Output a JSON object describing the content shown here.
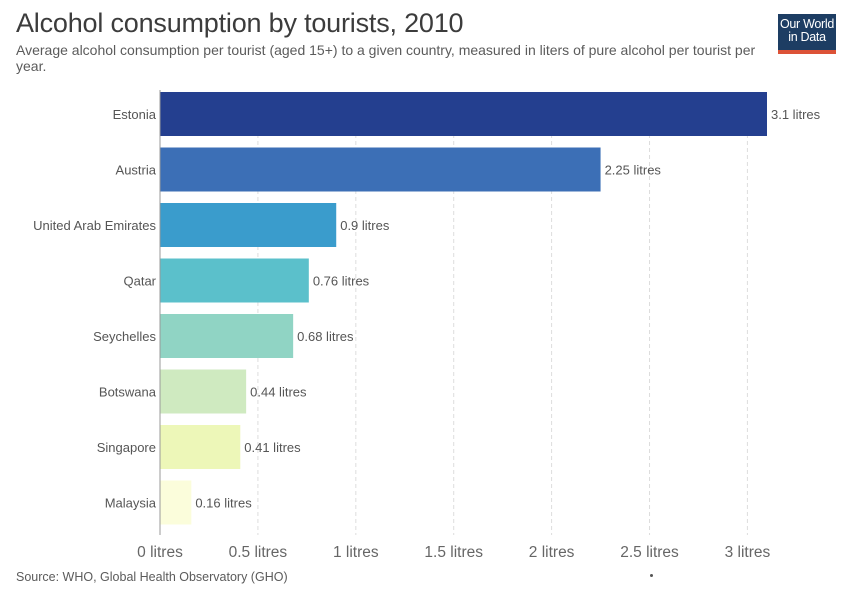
{
  "header": {
    "title": "Alcohol consumption by tourists, 2010",
    "subtitle": "Average alcohol consumption per tourist (aged 15+) to a given country, measured in liters of pure alcohol per tourist per year.",
    "logo_line1": "Our World",
    "logo_line2": "in Data"
  },
  "footer": {
    "source": "Source: WHO, Global Health Observatory (GHO)"
  },
  "chart_data": {
    "type": "bar",
    "orientation": "horizontal",
    "title": "Alcohol consumption by tourists, 2010",
    "xlabel": "",
    "ylabel": "",
    "xlim": [
      0,
      3.1
    ],
    "unit": "litres",
    "grid": true,
    "x_ticks": [
      0,
      0.5,
      1,
      1.5,
      2,
      2.5,
      3
    ],
    "x_tick_labels": [
      "0 litres",
      "0.5 litres",
      "1 litres",
      "1.5 litres",
      "2 litres",
      "2.5 litres",
      "3 litres"
    ],
    "categories": [
      "Estonia",
      "Austria",
      "United Arab Emirates",
      "Qatar",
      "Seychelles",
      "Botswana",
      "Singapore",
      "Malaysia"
    ],
    "values": [
      3.1,
      2.25,
      0.9,
      0.76,
      0.68,
      0.44,
      0.41,
      0.16
    ],
    "value_labels": [
      "3.1 litres",
      "2.25 litres",
      "0.9 litres",
      "0.76 litres",
      "0.68 litres",
      "0.44 litres",
      "0.41 litres",
      "0.16 litres"
    ],
    "colors": [
      "#243f8f",
      "#3c6fb6",
      "#3a9ccc",
      "#5bc0cb",
      "#90d4c4",
      "#cfeac0",
      "#edf7b8",
      "#fbfddb"
    ]
  }
}
